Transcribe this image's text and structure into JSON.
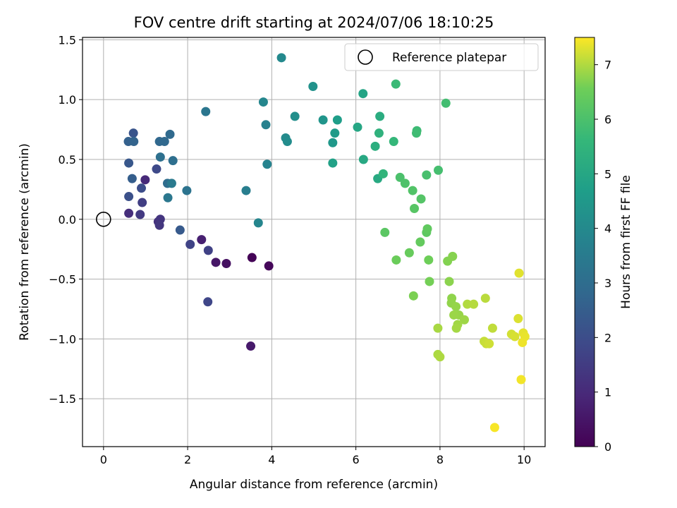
{
  "chart_data": {
    "type": "scatter",
    "title": "FOV centre drift starting at 2024/07/06 18:10:25",
    "xlabel": "Angular distance from reference (arcmin)",
    "ylabel": "Rotation from reference (arcmin)",
    "xlim": [
      -0.5,
      10.5
    ],
    "ylim": [
      -1.9,
      1.52
    ],
    "xticks": [
      0,
      2,
      4,
      6,
      8,
      10
    ],
    "xtick_labels": [
      "0",
      "2",
      "4",
      "6",
      "8",
      "10"
    ],
    "yticks": [
      -1.5,
      -1.0,
      -0.5,
      0.0,
      0.5,
      1.0,
      1.5
    ],
    "ytick_labels": [
      "−1.5",
      "−1.0",
      "−0.5",
      "0.0",
      "0.5",
      "1.0",
      "1.5"
    ],
    "grid": true,
    "colormap": "viridis",
    "colorbar": {
      "label": "Hours from first FF file",
      "range": [
        0,
        7.5
      ],
      "ticks": [
        0,
        1,
        2,
        3,
        4,
        5,
        6,
        7
      ],
      "tick_labels": [
        "0",
        "1",
        "2",
        "3",
        "4",
        "5",
        "6",
        "7"
      ]
    },
    "reference": {
      "name": "Reference platepar",
      "x": 0,
      "y": 0
    },
    "legend": {
      "position": "top-right",
      "entries": [
        "Reference platepar"
      ]
    },
    "points": [
      {
        "x": 3.53,
        "y": -0.32,
        "c": 0.05
      },
      {
        "x": 3.93,
        "y": -0.39,
        "c": 0.15
      },
      {
        "x": 2.92,
        "y": -0.37,
        "c": 0.35
      },
      {
        "x": 2.67,
        "y": -0.36,
        "c": 0.5
      },
      {
        "x": 3.5,
        "y": -1.06,
        "c": 0.6
      },
      {
        "x": 2.33,
        "y": -0.17,
        "c": 0.75
      },
      {
        "x": 0.99,
        "y": 0.33,
        "c": 1.0
      },
      {
        "x": 0.6,
        "y": 0.05,
        "c": 1.1
      },
      {
        "x": 1.3,
        "y": -0.02,
        "c": 1.2
      },
      {
        "x": 1.35,
        "y": 0.0,
        "c": 1.3
      },
      {
        "x": 1.33,
        "y": -0.05,
        "c": 1.35
      },
      {
        "x": 0.87,
        "y": 0.04,
        "c": 1.45
      },
      {
        "x": 0.92,
        "y": 0.14,
        "c": 1.55
      },
      {
        "x": 2.49,
        "y": -0.26,
        "c": 1.65
      },
      {
        "x": 2.06,
        "y": -0.21,
        "c": 1.7
      },
      {
        "x": 2.48,
        "y": -0.69,
        "c": 1.8
      },
      {
        "x": 1.26,
        "y": 0.42,
        "c": 1.9
      },
      {
        "x": 0.9,
        "y": 0.26,
        "c": 2.0
      },
      {
        "x": 0.6,
        "y": 0.19,
        "c": 2.1
      },
      {
        "x": 0.71,
        "y": 0.72,
        "c": 2.2
      },
      {
        "x": 0.6,
        "y": 0.47,
        "c": 2.3
      },
      {
        "x": 1.82,
        "y": -0.09,
        "c": 2.4
      },
      {
        "x": 0.68,
        "y": 0.34,
        "c": 2.5
      },
      {
        "x": 0.59,
        "y": 0.65,
        "c": 2.6
      },
      {
        "x": 0.72,
        "y": 0.65,
        "c": 2.7
      },
      {
        "x": 1.33,
        "y": 0.65,
        "c": 2.8
      },
      {
        "x": 1.45,
        "y": 0.65,
        "c": 2.85
      },
      {
        "x": 1.58,
        "y": 0.71,
        "c": 2.9
      },
      {
        "x": 1.52,
        "y": 0.3,
        "c": 3.0
      },
      {
        "x": 1.65,
        "y": 0.49,
        "c": 3.05
      },
      {
        "x": 1.35,
        "y": 0.52,
        "c": 3.1
      },
      {
        "x": 1.98,
        "y": 0.24,
        "c": 3.2
      },
      {
        "x": 2.43,
        "y": 0.9,
        "c": 3.3
      },
      {
        "x": 1.53,
        "y": 0.18,
        "c": 3.35
      },
      {
        "x": 1.62,
        "y": 0.3,
        "c": 3.45
      },
      {
        "x": 3.39,
        "y": 0.24,
        "c": 3.6
      },
      {
        "x": 3.86,
        "y": 0.79,
        "c": 3.7
      },
      {
        "x": 3.89,
        "y": 0.46,
        "c": 3.8
      },
      {
        "x": 3.68,
        "y": -0.03,
        "c": 3.85
      },
      {
        "x": 3.8,
        "y": 0.98,
        "c": 3.9
      },
      {
        "x": 4.23,
        "y": 1.35,
        "c": 4.0
      },
      {
        "x": 4.33,
        "y": 0.68,
        "c": 4.05
      },
      {
        "x": 4.37,
        "y": 0.65,
        "c": 4.1
      },
      {
        "x": 4.55,
        "y": 0.86,
        "c": 4.2
      },
      {
        "x": 4.98,
        "y": 1.11,
        "c": 4.3
      },
      {
        "x": 5.22,
        "y": 0.83,
        "c": 4.4
      },
      {
        "x": 5.45,
        "y": 0.64,
        "c": 4.5
      },
      {
        "x": 5.5,
        "y": 0.72,
        "c": 4.6
      },
      {
        "x": 5.56,
        "y": 0.83,
        "c": 4.7
      },
      {
        "x": 5.45,
        "y": 0.47,
        "c": 4.8
      },
      {
        "x": 6.17,
        "y": 1.05,
        "c": 4.9
      },
      {
        "x": 6.04,
        "y": 0.77,
        "c": 5.0
      },
      {
        "x": 6.18,
        "y": 0.5,
        "c": 5.05
      },
      {
        "x": 6.52,
        "y": 0.34,
        "c": 5.1
      },
      {
        "x": 6.57,
        "y": 0.86,
        "c": 5.2
      },
      {
        "x": 6.46,
        "y": 0.61,
        "c": 5.3
      },
      {
        "x": 6.55,
        "y": 0.72,
        "c": 5.4
      },
      {
        "x": 6.65,
        "y": 0.38,
        "c": 5.5
      },
      {
        "x": 6.9,
        "y": 0.65,
        "c": 5.6
      },
      {
        "x": 6.95,
        "y": 1.13,
        "c": 5.7
      },
      {
        "x": 7.45,
        "y": 0.74,
        "c": 5.75
      },
      {
        "x": 7.44,
        "y": 0.72,
        "c": 5.8
      },
      {
        "x": 8.14,
        "y": 0.97,
        "c": 5.85
      },
      {
        "x": 7.96,
        "y": 0.41,
        "c": 5.9
      },
      {
        "x": 7.68,
        "y": 0.37,
        "c": 5.95
      },
      {
        "x": 7.05,
        "y": 0.35,
        "c": 6.0
      },
      {
        "x": 7.17,
        "y": 0.3,
        "c": 6.05
      },
      {
        "x": 7.35,
        "y": 0.24,
        "c": 6.1
      },
      {
        "x": 7.55,
        "y": 0.17,
        "c": 6.15
      },
      {
        "x": 7.39,
        "y": 0.09,
        "c": 6.2
      },
      {
        "x": 6.69,
        "y": -0.11,
        "c": 6.25
      },
      {
        "x": 7.68,
        "y": -0.11,
        "c": 6.3
      },
      {
        "x": 7.7,
        "y": -0.08,
        "c": 6.35
      },
      {
        "x": 7.53,
        "y": -0.19,
        "c": 6.4
      },
      {
        "x": 7.27,
        "y": -0.28,
        "c": 6.45
      },
      {
        "x": 6.96,
        "y": -0.34,
        "c": 6.5
      },
      {
        "x": 7.73,
        "y": -0.34,
        "c": 6.55
      },
      {
        "x": 7.75,
        "y": -0.52,
        "c": 6.6
      },
      {
        "x": 7.37,
        "y": -0.64,
        "c": 6.65
      },
      {
        "x": 8.18,
        "y": -0.35,
        "c": 6.7
      },
      {
        "x": 8.3,
        "y": -0.31,
        "c": 6.72
      },
      {
        "x": 8.22,
        "y": -0.52,
        "c": 6.75
      },
      {
        "x": 8.28,
        "y": -0.66,
        "c": 6.78
      },
      {
        "x": 8.27,
        "y": -0.7,
        "c": 6.8
      },
      {
        "x": 8.38,
        "y": -0.73,
        "c": 6.82
      },
      {
        "x": 8.45,
        "y": -0.8,
        "c": 6.84
      },
      {
        "x": 8.33,
        "y": -0.8,
        "c": 6.86
      },
      {
        "x": 8.58,
        "y": -0.84,
        "c": 6.88
      },
      {
        "x": 8.42,
        "y": -0.88,
        "c": 6.9
      },
      {
        "x": 8.39,
        "y": -0.91,
        "c": 6.92
      },
      {
        "x": 7.95,
        "y": -0.91,
        "c": 6.94
      },
      {
        "x": 7.95,
        "y": -1.13,
        "c": 6.96
      },
      {
        "x": 8.0,
        "y": -1.15,
        "c": 6.98
      },
      {
        "x": 8.65,
        "y": -0.71,
        "c": 7.0
      },
      {
        "x": 8.8,
        "y": -0.71,
        "c": 7.03
      },
      {
        "x": 9.08,
        "y": -0.66,
        "c": 7.06
      },
      {
        "x": 9.25,
        "y": -0.91,
        "c": 7.1
      },
      {
        "x": 9.05,
        "y": -1.02,
        "c": 7.13
      },
      {
        "x": 9.1,
        "y": -1.04,
        "c": 7.16
      },
      {
        "x": 9.17,
        "y": -1.04,
        "c": 7.19
      },
      {
        "x": 9.7,
        "y": -0.96,
        "c": 7.22
      },
      {
        "x": 9.78,
        "y": -0.98,
        "c": 7.25
      },
      {
        "x": 9.86,
        "y": -0.83,
        "c": 7.28
      },
      {
        "x": 9.88,
        "y": -0.45,
        "c": 7.31
      },
      {
        "x": 9.98,
        "y": -0.95,
        "c": 7.34
      },
      {
        "x": 10.02,
        "y": -0.98,
        "c": 7.37
      },
      {
        "x": 9.96,
        "y": -1.03,
        "c": 7.4
      },
      {
        "x": 9.93,
        "y": -1.34,
        "c": 7.43
      },
      {
        "x": 9.3,
        "y": -1.74,
        "c": 7.46
      }
    ]
  }
}
